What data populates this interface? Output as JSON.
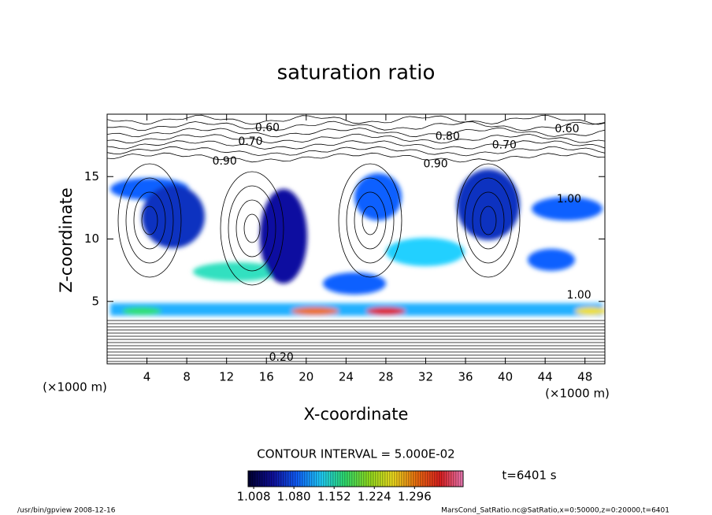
{
  "chart_data": {
    "type": "contour",
    "title": "saturation ratio",
    "x_label": "X-coordinate",
    "y_label": "Z-coordinate",
    "x_unit_left": "(×1000 m)",
    "x_unit_right": "(×1000 m)",
    "xlim": [
      0,
      50
    ],
    "ylim": [
      0,
      20
    ],
    "xticks": [
      4,
      8,
      12,
      16,
      20,
      24,
      28,
      32,
      36,
      40,
      44,
      48
    ],
    "yticks": [
      5,
      10,
      15
    ],
    "contour_interval": "CONTOUR INTERVAL = 5.000E-02",
    "contour_labels": [
      {
        "text": "0.60",
        "x": 16.1,
        "y": 18.9
      },
      {
        "text": "0.70",
        "x": 14.4,
        "y": 17.8
      },
      {
        "text": "0.80",
        "x": 34.2,
        "y": 18.2
      },
      {
        "text": "0.90",
        "x": 11.8,
        "y": 16.2
      },
      {
        "text": "0.90",
        "x": 33.0,
        "y": 16.0
      },
      {
        "text": "0.70",
        "x": 39.9,
        "y": 17.5
      },
      {
        "text": "0.60",
        "x": 46.2,
        "y": 18.8
      },
      {
        "text": "1.00",
        "x": 46.4,
        "y": 13.2
      },
      {
        "text": "1.00",
        "x": 47.4,
        "y": 5.5
      },
      {
        "text": "0.20",
        "x": 17.5,
        "y": 0.5
      }
    ],
    "colorbar_lim": [
      0.998,
      1.383
    ],
    "colorbar_ticks": [
      {
        "value": 1.008,
        "label": "1.008"
      },
      {
        "value": 1.08,
        "label": "1.080"
      },
      {
        "value": 1.152,
        "label": "1.152"
      },
      {
        "value": 1.224,
        "label": "1.224"
      },
      {
        "value": 1.296,
        "label": "1.296"
      }
    ],
    "colormap": [
      "#000033",
      "#1010a0",
      "#1060ff",
      "#20d0ff",
      "#30e070",
      "#90e020",
      "#f0e020",
      "#f07010",
      "#e02020",
      "#f080c0"
    ],
    "time_label": "t=6401 s",
    "footer_left": "/usr/bin/gpview   2008-12-16",
    "footer_right": "MarsCond_SatRatio.nc@SatRatio,x=0:50000,z=0:20000,t=6401"
  }
}
